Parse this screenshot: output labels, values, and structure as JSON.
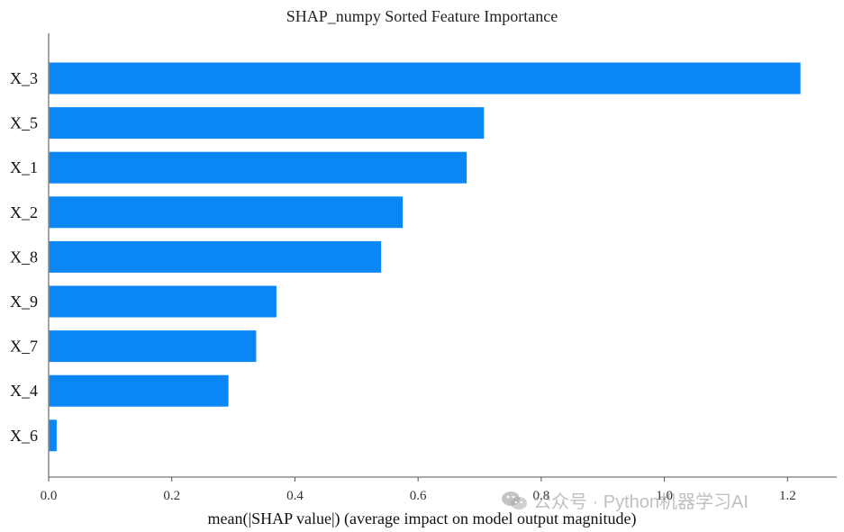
{
  "chart_data": {
    "type": "bar",
    "orientation": "horizontal",
    "title": "SHAP_numpy Sorted Feature Importance",
    "xlabel": "mean(|SHAP value|) (average impact on model output magnitude)",
    "ylabel": "",
    "categories": [
      "X_3",
      "X_5",
      "X_1",
      "X_2",
      "X_8",
      "X_9",
      "X_7",
      "X_4",
      "X_6"
    ],
    "values": [
      1.221,
      0.707,
      0.679,
      0.575,
      0.54,
      0.37,
      0.337,
      0.292,
      0.013
    ],
    "xlim": [
      0,
      1.28
    ],
    "xticks": [
      0,
      0.2,
      0.4,
      0.6,
      0.8,
      1.0,
      1.2
    ],
    "xtick_labels": [
      "0.0",
      "0.2",
      "0.4",
      "0.6",
      "0.8",
      "1.0",
      "1.2"
    ],
    "grid": false,
    "bar_color": "#0a87f5"
  },
  "watermark": {
    "text": "公众号 · Python机器学习AI",
    "icon": "wechat-icon"
  }
}
